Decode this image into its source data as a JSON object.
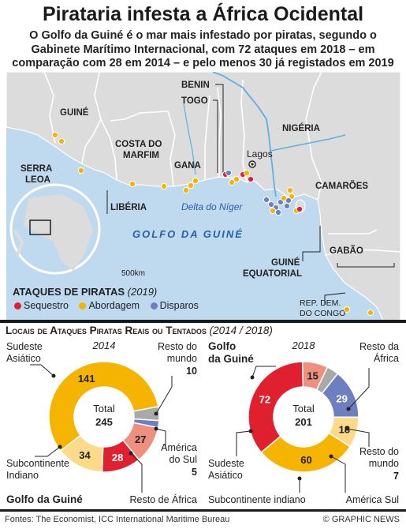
{
  "title": "Pirataria infesta a África Ocidental",
  "subtitle_lines": [
    "O Golfo da Guiné é o mar mais infestado por piratas, segundo o",
    "Gabinete Marítimo Internacional, com 72 ataques em 2018 – em",
    "comparação com 28 em 2014 – e pelo menos 30 já registados em 2019"
  ],
  "map": {
    "countries": [
      "BENIN",
      "TOGO",
      "GUINÉ",
      "COSTA DO",
      "MARFIM",
      "SERRA",
      "LEOA",
      "GANA",
      "NIGÉRIA",
      "CAMARÕES",
      "LIBÉRIA",
      "GUINÉ",
      "EQUATORIAL",
      "GABÃO",
      "REP. DEM.",
      "DO CONGO"
    ],
    "city": "Lagos",
    "delta_label": "Delta do Níger",
    "sea_label": "GOLFO DA GUINÉ",
    "scale_label": "500km",
    "colors": {
      "land": "#dcdcdc",
      "sea": "#bfd9ee",
      "river": "#5fb0dc",
      "border": "#ffffff"
    }
  },
  "legend": {
    "title": "Ataques de Piratas",
    "year": "(2019)",
    "items": [
      {
        "label": "Sequestro",
        "color": "#e0202f"
      },
      {
        "label": "Abordagem",
        "color": "#f5b400"
      },
      {
        "label": "Disparos",
        "color": "#6d7fc1"
      }
    ]
  },
  "section": {
    "title": "Locais de Ataques Piratas Reais ou Tentados",
    "years": "(2014 / 2018)"
  },
  "chart_data": [
    {
      "type": "pie",
      "title": "2014",
      "total_label": "Total",
      "total": 245,
      "slices": [
        {
          "name": "Sudeste Asiático",
          "value": 141,
          "color": "#f5b400"
        },
        {
          "name": "Resto do mundo",
          "value": 10,
          "color": "#a9a9a9"
        },
        {
          "name": "América do Sul",
          "value": 5,
          "color": "#6d7fc1"
        },
        {
          "name": "Resto de África",
          "value": 27,
          "color": "#ef8f80"
        },
        {
          "name": "Golfo da Guiné",
          "value": 28,
          "color": "#e0202f"
        },
        {
          "name": "Subcontinente Indiano",
          "value": 34,
          "color": "#fdd98a"
        }
      ]
    },
    {
      "type": "pie",
      "title": "2018",
      "total_label": "Total",
      "total": 201,
      "slices": [
        {
          "name": "Golfo da Guiné",
          "value": 72,
          "color": "#e0202f"
        },
        {
          "name": "Resto da África",
          "value": 15,
          "color": "#ef8f80"
        },
        {
          "name": "Resto do mundo",
          "value": 7,
          "color": "#a9a9a9"
        },
        {
          "name": "América Sul",
          "value": 29,
          "color": "#6d7fc1"
        },
        {
          "name": "Subcontinente indiano",
          "value": 18,
          "color": "#fdd98a"
        },
        {
          "name": "Sudeste Asiático",
          "value": 60,
          "color": "#f5b400"
        }
      ]
    }
  ],
  "donut_labels": {
    "left": {
      "sudeste": [
        "Sudeste",
        "Asiático"
      ],
      "resto_mundo": [
        "Resto do",
        "mundo"
      ],
      "resto_mundo_val": "10",
      "america": [
        "América",
        "do Sul"
      ],
      "america_val": "5",
      "resto_africa": "Resto de África",
      "golfo": "Golfo da Guiné",
      "subcontinente": [
        "Subcontinente",
        "Indiano"
      ]
    },
    "right": {
      "golfo": [
        "Golfo",
        "da Guiné"
      ],
      "resto_africa": [
        "Resto da",
        "África"
      ],
      "resto_mundo": [
        "Resto do",
        "mundo"
      ],
      "resto_mundo_val": "7",
      "america": "América Sul",
      "subcontinente": "Subcontinente indiano",
      "sudeste": [
        "Sudeste",
        "Asiático"
      ]
    }
  },
  "footer": {
    "source": "Fontes: The Economist, ICC International Maritime Bureau",
    "credit": "© GRAPHIC NEWS"
  }
}
